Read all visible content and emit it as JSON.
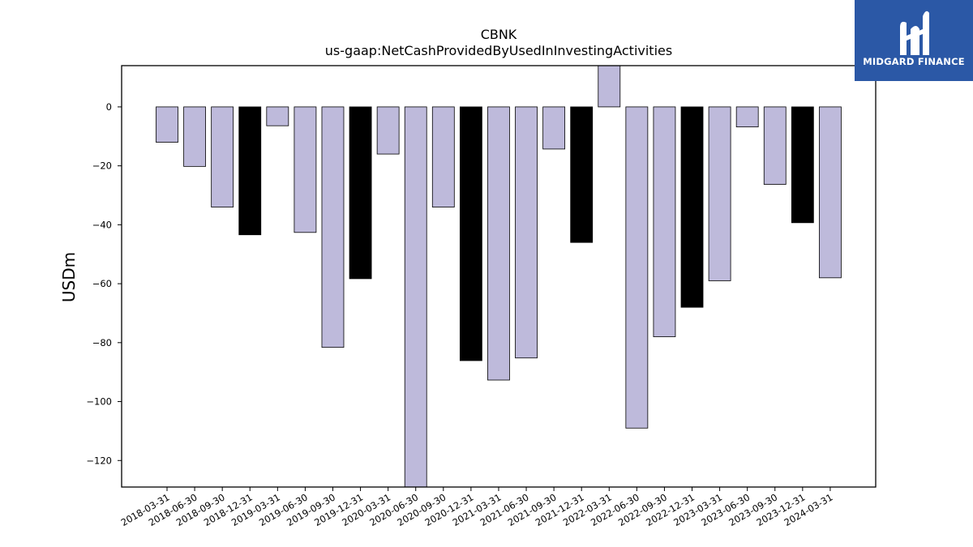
{
  "chart_data": {
    "type": "bar",
    "title": "CBNK",
    "subtitle": "us-gaap:NetCashProvidedByUsedInInvestingActivities",
    "xlabel": "",
    "ylabel": "USDm",
    "ylim": [
      -129,
      14
    ],
    "yticks": [
      0,
      -20,
      -40,
      -60,
      -80,
      -100,
      -120
    ],
    "grid": false,
    "categories": [
      "2018-03-31",
      "2018-06-30",
      "2018-09-30",
      "2018-12-31",
      "2019-03-31",
      "2019-06-30",
      "2019-09-30",
      "2019-12-31",
      "2020-03-31",
      "2020-06-30",
      "2020-09-30",
      "2020-12-31",
      "2021-03-31",
      "2021-06-30",
      "2021-09-30",
      "2021-12-31",
      "2022-03-31",
      "2022-06-30",
      "2022-09-30",
      "2022-12-31",
      "2023-03-31",
      "2023-06-30",
      "2023-09-30",
      "2023-12-31",
      "2024-03-31"
    ],
    "values": [
      -12,
      -20.2,
      -34,
      -43.4,
      -6.4,
      -42.6,
      -81.6,
      -58.3,
      -16,
      -129,
      -34,
      -86.1,
      -92.7,
      -85.2,
      -14.3,
      -46,
      14,
      -109,
      -78,
      -68,
      -59,
      -6.8,
      -26.3,
      -39.3,
      -58
    ],
    "colors": {
      "quarter": "#bebadb",
      "year_end": "#000000",
      "edge": "#000000"
    }
  },
  "logo": {
    "text": "MIDGARD FINANCE"
  }
}
